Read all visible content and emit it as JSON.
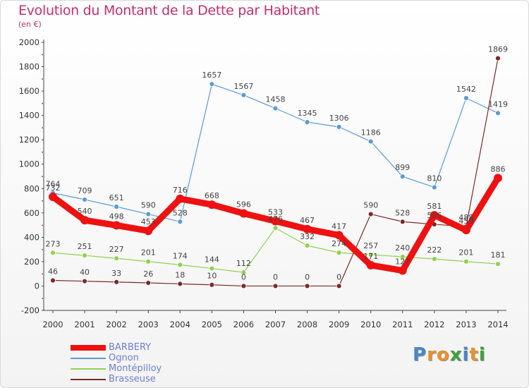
{
  "title": "Evolution du Montant de la Dette par Habitant",
  "subtitle": "(en €)",
  "logo": {
    "letters": [
      {
        "ch": "P",
        "color": "#4a86c8"
      },
      {
        "ch": "r",
        "color": "#e8912a"
      },
      {
        "ch": "o",
        "color": "#e8912a"
      },
      {
        "ch": "x",
        "color": "#3aa23a"
      },
      {
        "ch": "i",
        "color": "#4a86c8"
      },
      {
        "ch": "t",
        "color": "#e8912a"
      },
      {
        "ch": "i",
        "color": "#3aa23a"
      }
    ]
  },
  "chart_data": {
    "type": "line",
    "title": "Evolution du Montant de la Dette par Habitant",
    "subtitle": "(en €)",
    "xlabel": "",
    "ylabel": "",
    "ylim": [
      -200,
      2000
    ],
    "yticks": [
      -200,
      0,
      200,
      400,
      600,
      800,
      1000,
      1200,
      1400,
      1600,
      1800,
      2000
    ],
    "categories": [
      "2000",
      "2001",
      "2002",
      "2003",
      "2004",
      "2005",
      "2006",
      "2007",
      "2008",
      "2009",
      "2010",
      "2011",
      "2012",
      "2013",
      "2014"
    ],
    "grid": false,
    "legend_position": "bottom-left",
    "series": [
      {
        "name": "BARBERY",
        "color": "#ee1111",
        "width": 9,
        "marker": 6,
        "values": [
          732,
          540,
          498,
          453,
          716,
          668,
          596,
          533,
          467,
          417,
          171,
          127,
          581,
          459,
          886
        ],
        "labels": [
          "732",
          "540",
          "498",
          "453",
          "716",
          "668",
          "596",
          "533",
          "467",
          "417",
          "171",
          "127",
          "581",
          "459",
          "886"
        ]
      },
      {
        "name": "Ognon",
        "color": "#5b9bd5",
        "width": 1.2,
        "marker": 3.5,
        "values": [
          764,
          709,
          651,
          590,
          528,
          1657,
          1567,
          1458,
          1345,
          1306,
          1186,
          899,
          810,
          1542,
          1419
        ],
        "labels": [
          "764",
          "709",
          "651",
          "590",
          "528",
          "1657",
          "1567",
          "1458",
          "1345",
          "1306",
          "1186",
          "899",
          "810",
          "1542",
          "1419"
        ]
      },
      {
        "name": "Montépilloy",
        "color": "#8fd14f",
        "width": 1.2,
        "marker": 3.5,
        "values": [
          273,
          251,
          227,
          201,
          174,
          144,
          112,
          476,
          332,
          274,
          257,
          240,
          222,
          201,
          181
        ],
        "labels": [
          "273",
          "251",
          "227",
          "201",
          "174",
          "144",
          "112",
          "476",
          "332",
          "274",
          "257",
          "240",
          "222",
          "201",
          "181"
        ]
      },
      {
        "name": "Brasseuse",
        "color": "#7b2a2a",
        "width": 1.2,
        "marker": 3.5,
        "values": [
          46,
          40,
          33,
          26,
          18,
          10,
          0,
          0,
          0,
          0,
          590,
          528,
          506,
          488,
          1869
        ],
        "labels": [
          "46",
          "40",
          "33",
          "26",
          "18",
          "10",
          "0",
          "0",
          "0",
          "0",
          "590",
          "528",
          "506",
          "488",
          "1869"
        ]
      }
    ]
  }
}
